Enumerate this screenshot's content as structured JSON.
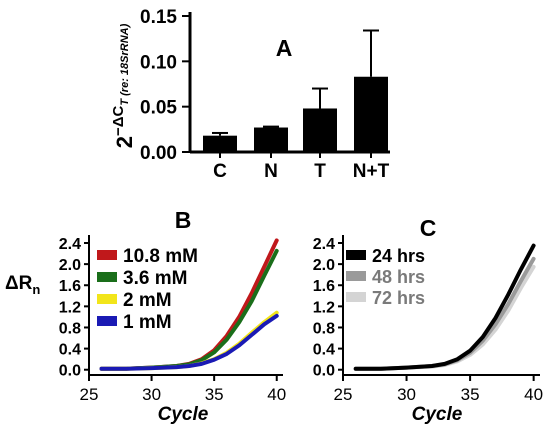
{
  "chart_data": [
    {
      "panel": "A",
      "type": "bar",
      "title": "A",
      "ylabel_main": "2",
      "ylabel_exponent": "−ΔC",
      "ylabel_sub": "T (re: 18SrRNA)",
      "categories": [
        "C",
        "N",
        "T",
        "N+T"
      ],
      "values": [
        0.018,
        0.027,
        0.048,
        0.083
      ],
      "error_upper": [
        0.021,
        0.028,
        0.07,
        0.134
      ],
      "yticks": [
        "0.00",
        "0.05",
        "0.10",
        "0.15"
      ],
      "ylim": [
        0,
        0.15
      ],
      "bar_color": "#000000",
      "grid": false
    },
    {
      "panel": "B",
      "type": "line",
      "title": "B",
      "xlabel": "Cycle",
      "ylabel_main": "ΔR",
      "ylabel_sub": "n",
      "xlim": [
        25,
        40.5
      ],
      "ylim": [
        -0.1,
        2.4
      ],
      "xticks": [
        25,
        30,
        35,
        40
      ],
      "yticks": [
        "0.0",
        "0.4",
        "0.8",
        "1.2",
        "1.6",
        "2.0",
        "2.4"
      ],
      "legend_position": "top-left",
      "series": [
        {
          "name": "10.8 mM",
          "color": "#c0181b",
          "x": [
            26,
            28,
            30,
            32,
            33,
            34,
            35,
            36,
            37,
            38,
            39,
            40
          ],
          "y": [
            0.02,
            0.02,
            0.04,
            0.07,
            0.11,
            0.2,
            0.37,
            0.64,
            1.0,
            1.45,
            1.95,
            2.45
          ]
        },
        {
          "name": "3.6 mM",
          "color": "#1a6e1a",
          "x": [
            26,
            28,
            30,
            32,
            33,
            34,
            35,
            36,
            37,
            38,
            39,
            40
          ],
          "y": [
            0.02,
            0.02,
            0.04,
            0.07,
            0.1,
            0.18,
            0.33,
            0.57,
            0.9,
            1.3,
            1.78,
            2.25
          ]
        },
        {
          "name": "2 mM",
          "color": "#f2e51a",
          "x": [
            26,
            28,
            30,
            32,
            33,
            34,
            35,
            36,
            37,
            38,
            39,
            40
          ],
          "y": [
            0.02,
            0.02,
            0.03,
            0.05,
            0.07,
            0.12,
            0.2,
            0.32,
            0.49,
            0.7,
            0.9,
            1.08
          ]
        },
        {
          "name": "1 mM",
          "color": "#1a1ab4",
          "x": [
            26,
            28,
            30,
            32,
            33,
            34,
            35,
            36,
            37,
            38,
            39,
            40
          ],
          "y": [
            0.02,
            0.02,
            0.03,
            0.05,
            0.07,
            0.11,
            0.19,
            0.3,
            0.46,
            0.66,
            0.86,
            1.02
          ]
        }
      ]
    },
    {
      "panel": "C",
      "type": "line",
      "title": "C",
      "xlabel": "Cycle",
      "xlim": [
        25,
        40.5
      ],
      "ylim": [
        -0.1,
        2.4
      ],
      "xticks": [
        25,
        30,
        35,
        40
      ],
      "yticks": [
        "0.0",
        "0.4",
        "0.8",
        "1.2",
        "1.6",
        "2.0",
        "2.4"
      ],
      "legend_position": "top-left",
      "series": [
        {
          "name": "72 hrs",
          "color": "#d4d4d4",
          "x": [
            26,
            28,
            30,
            32,
            33,
            34,
            35,
            36,
            37,
            38,
            39,
            40
          ],
          "y": [
            0.02,
            0.02,
            0.04,
            0.06,
            0.09,
            0.16,
            0.28,
            0.48,
            0.76,
            1.12,
            1.55,
            1.95
          ]
        },
        {
          "name": "48 hrs",
          "color": "#9a9a9a",
          "x": [
            26,
            28,
            30,
            32,
            33,
            34,
            35,
            36,
            37,
            38,
            39,
            40
          ],
          "y": [
            0.02,
            0.02,
            0.04,
            0.07,
            0.1,
            0.18,
            0.32,
            0.55,
            0.86,
            1.24,
            1.68,
            2.1
          ]
        },
        {
          "name": "24 hrs",
          "color": "#000000",
          "x": [
            26,
            28,
            30,
            32,
            33,
            34,
            35,
            36,
            37,
            38,
            39,
            40
          ],
          "y": [
            0.02,
            0.02,
            0.04,
            0.07,
            0.11,
            0.2,
            0.36,
            0.62,
            0.98,
            1.42,
            1.9,
            2.35
          ]
        }
      ]
    }
  ]
}
